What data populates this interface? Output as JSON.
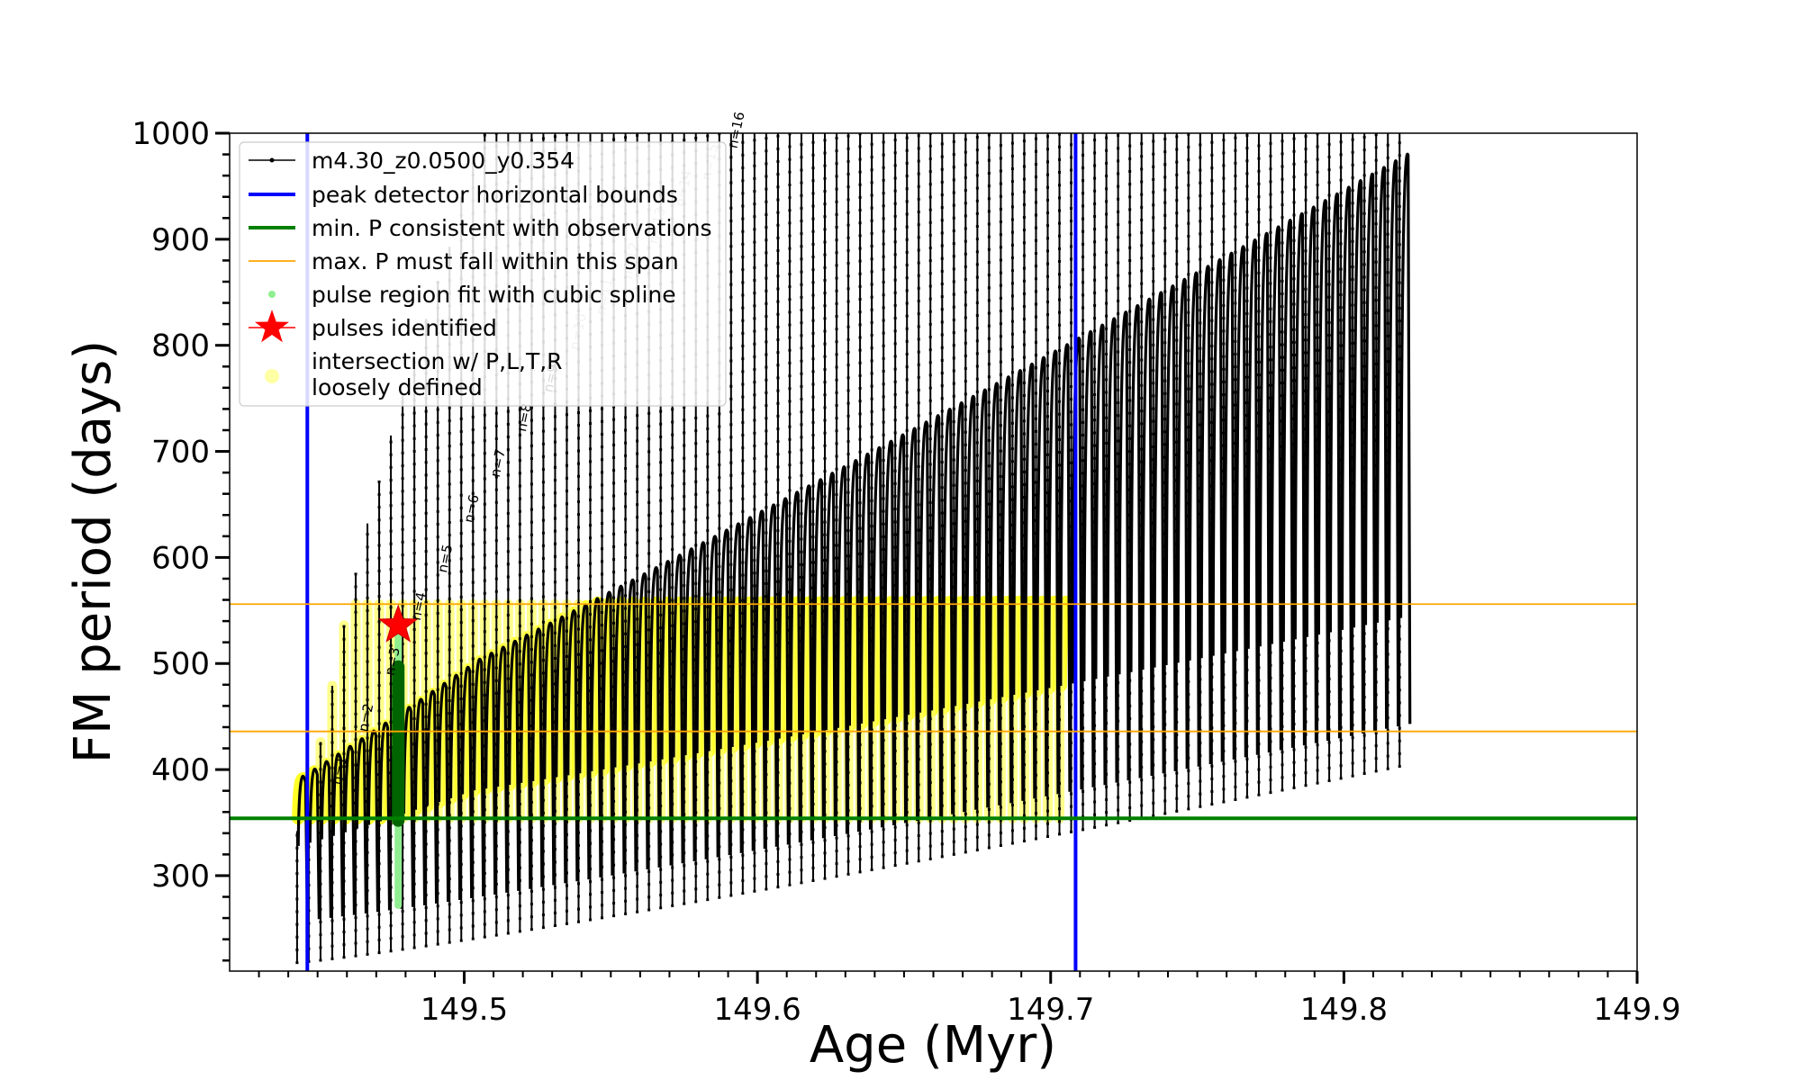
{
  "chart_data": {
    "type": "line",
    "xlabel": "Age (Myr)",
    "ylabel": "FM period (days)",
    "xlim": [
      149.42,
      149.9
    ],
    "ylim": [
      210,
      1000
    ],
    "xticks": [
      149.5,
      149.6,
      149.7,
      149.8,
      149.9
    ],
    "xtick_labels": [
      "149.5",
      "149.6",
      "149.7",
      "149.8",
      "149.9"
    ],
    "yticks": [
      300,
      400,
      500,
      600,
      700,
      800,
      900,
      1000
    ],
    "ytick_labels": [
      "300",
      "400",
      "500",
      "600",
      "700",
      "800",
      "900",
      "1000"
    ],
    "grid": false,
    "legend_position": "top-left",
    "legend": [
      {
        "label": "m4.30_z0.0500_y0.354",
        "kind": "line-marker",
        "color": "#000000"
      },
      {
        "label": "peak detector horizontal bounds",
        "kind": "line",
        "color": "#0000ff"
      },
      {
        "label": "min. P consistent with observations",
        "kind": "line",
        "color": "#008000"
      },
      {
        "label": "max. P must fall within this span",
        "kind": "thin-line",
        "color": "#ffa500"
      },
      {
        "label": "pulse region fit with cubic spline",
        "kind": "dot",
        "color": "#90ee90"
      },
      {
        "label": "pulses identified",
        "kind": "star",
        "color": "#ff0000"
      },
      {
        "label": "intersection w/ P,L,T,R\nloosely defined",
        "kind": "dot",
        "color": "#ffff66"
      }
    ],
    "vertical_lines": [
      {
        "name": "peak detector horizontal bounds",
        "x": 149.4465,
        "color": "#0000ff"
      },
      {
        "name": "peak detector horizontal bounds",
        "x": 149.7085,
        "color": "#0000ff"
      }
    ],
    "horizontal_lines": [
      {
        "name": "min. P consistent with observations",
        "y": 354,
        "color": "#008000"
      },
      {
        "name": "max. P must fall within this span",
        "y": 436,
        "color": "#ffa500"
      },
      {
        "name": "max. P must fall within this span",
        "y": 556,
        "color": "#ffa500"
      }
    ],
    "pulse_model": {
      "pulse_count": 95,
      "first_pulse_age": 149.443,
      "last_pulse_age": 149.819,
      "base_min_start": 218,
      "base_min_growth": 185,
      "peak_values": [
        342,
        360,
        426,
        479,
        536,
        585,
        632,
        672,
        715,
        752,
        790,
        825,
        860,
        893,
        940,
        980,
        1000
      ]
    },
    "pulse_labels": [
      {
        "text": "n=1",
        "x": 149.4595,
        "y": 385
      },
      {
        "text": "n=2",
        "x": 149.4685,
        "y": 435
      },
      {
        "text": "n=3",
        "x": 149.4775,
        "y": 488
      },
      {
        "text": "n=4",
        "x": 149.4865,
        "y": 540
      },
      {
        "text": "n=5",
        "x": 149.4955,
        "y": 585
      },
      {
        "text": "n=6",
        "x": 149.5045,
        "y": 632
      },
      {
        "text": "n=7",
        "x": 149.5135,
        "y": 675
      },
      {
        "text": "n=8",
        "x": 149.5225,
        "y": 718
      },
      {
        "text": "n=9",
        "x": 149.5315,
        "y": 755
      },
      {
        "text": "n=10",
        "x": 149.5405,
        "y": 795
      },
      {
        "text": "n=11",
        "x": 149.5495,
        "y": 828
      },
      {
        "text": "n=12",
        "x": 149.5585,
        "y": 862
      },
      {
        "text": "n=13",
        "x": 149.5675,
        "y": 895
      },
      {
        "text": "n=14",
        "x": 149.5765,
        "y": 930
      },
      {
        "text": "n=15",
        "x": 149.5855,
        "y": 955
      },
      {
        "text": "n=16",
        "x": 149.5945,
        "y": 985
      }
    ],
    "identified_pulse": {
      "x": 149.4775,
      "y": 536
    },
    "spline_fit": {
      "x": 149.4775,
      "y_min": 272,
      "y_max": 536,
      "dark_y_min": 352,
      "dark_y_max": 497
    }
  }
}
